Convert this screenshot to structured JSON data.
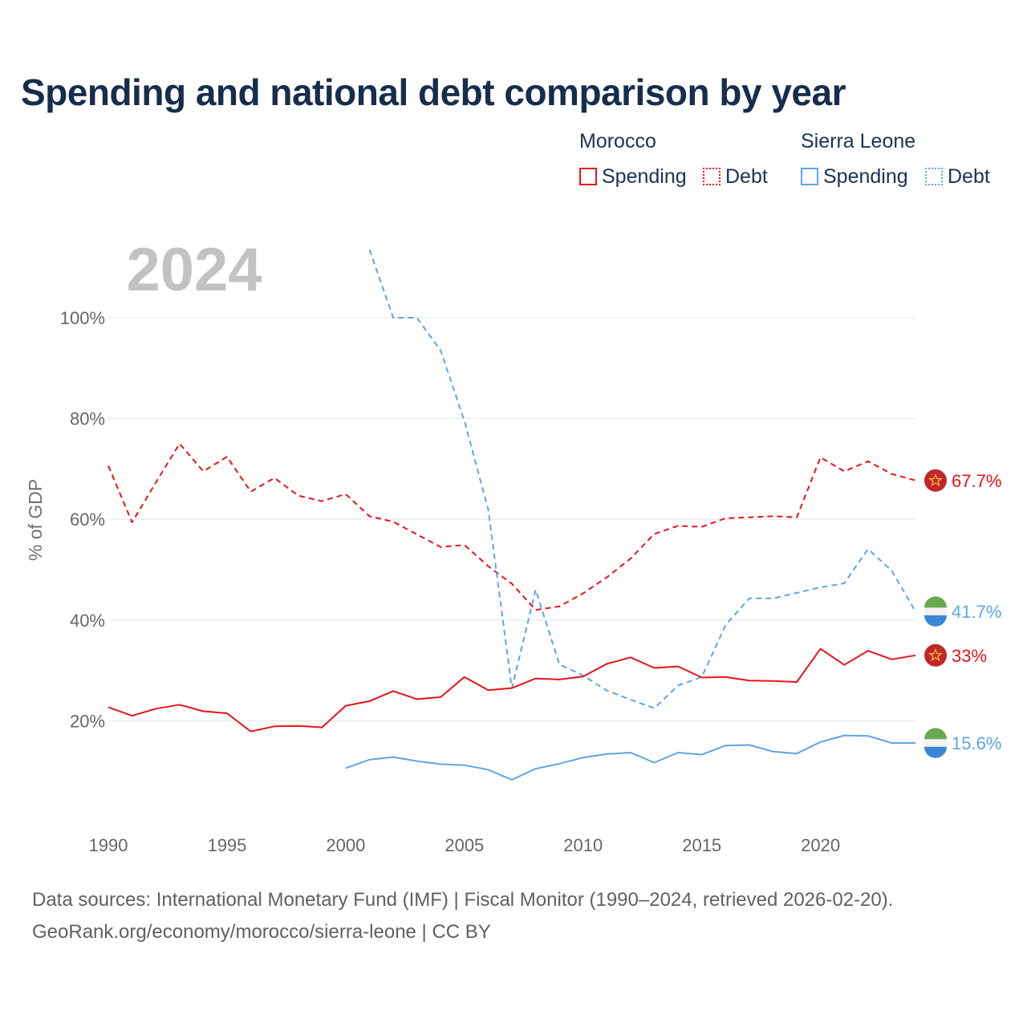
{
  "title": "Spending and national debt comparison by year",
  "legend": {
    "groups": [
      {
        "country": "Morocco",
        "color": "#e8131b",
        "items": [
          "Spending",
          "Debt"
        ]
      },
      {
        "country": "Sierra Leone",
        "color": "#5ea5e3",
        "items": [
          "Spending",
          "Debt"
        ]
      }
    ]
  },
  "chart_data": {
    "type": "line",
    "title": "Spending and national debt comparison by year",
    "year_label": "2024",
    "xlabel": "",
    "ylabel": "% of GDP",
    "xlim": [
      1990,
      2024
    ],
    "ylim": [
      0,
      110
    ],
    "xticks": [
      1990,
      1995,
      2000,
      2005,
      2010,
      2015,
      2020
    ],
    "yticks": [
      20,
      40,
      60,
      80,
      100
    ],
    "ytick_labels": [
      "20%",
      "40%",
      "60%",
      "80%",
      "100%"
    ],
    "grid": true,
    "series": [
      {
        "name": "Morocco Debt",
        "country": "Morocco",
        "style": "dashed",
        "color": "#e8131b",
        "x": [
          1990,
          1991,
          1992,
          1993,
          1994,
          1995,
          1996,
          1997,
          1998,
          1999,
          2000,
          2001,
          2002,
          2003,
          2004,
          2005,
          2006,
          2007,
          2008,
          2009,
          2010,
          2011,
          2012,
          2013,
          2014,
          2015,
          2016,
          2017,
          2018,
          2019,
          2020,
          2021,
          2022,
          2023,
          2024
        ],
        "y": [
          70.6,
          59.4,
          67.3,
          75.0,
          69.5,
          72.4,
          65.5,
          68.2,
          64.7,
          63.6,
          65.0,
          60.6,
          59.5,
          57.0,
          54.5,
          54.9,
          50.7,
          47.2,
          42.0,
          42.7,
          45.3,
          48.5,
          52.2,
          57.1,
          58.7,
          58.5,
          60.2,
          60.4,
          60.6,
          60.4,
          72.3,
          69.5,
          71.5,
          69.0,
          67.7
        ],
        "end_label": "67.7%"
      },
      {
        "name": "Sierra Leone Debt",
        "country": "Sierra Leone",
        "style": "dashed",
        "color": "#5ea5e3",
        "x": [
          2001,
          2002,
          2003,
          2004,
          2005,
          2006,
          2007,
          2008,
          2009,
          2010,
          2011,
          2012,
          2013,
          2014,
          2015,
          2016,
          2017,
          2018,
          2019,
          2020,
          2021,
          2022,
          2023,
          2024
        ],
        "y": [
          113.5,
          100.0,
          100.0,
          93.5,
          79.5,
          62.0,
          26.5,
          46.0,
          31.2,
          29.0,
          26.0,
          24.2,
          22.5,
          27.0,
          28.7,
          39.0,
          44.3,
          44.3,
          45.4,
          46.5,
          47.3,
          54.1,
          49.8,
          41.7
        ],
        "end_label": "41.7%"
      },
      {
        "name": "Morocco Spending",
        "country": "Morocco",
        "style": "solid",
        "color": "#e8131b",
        "x": [
          1990,
          1991,
          1992,
          1993,
          1994,
          1995,
          1996,
          1997,
          1998,
          1999,
          2000,
          2001,
          2002,
          2003,
          2004,
          2005,
          2006,
          2007,
          2008,
          2009,
          2010,
          2011,
          2012,
          2013,
          2014,
          2015,
          2016,
          2017,
          2018,
          2019,
          2020,
          2021,
          2022,
          2023,
          2024
        ],
        "y": [
          22.7,
          21.0,
          22.4,
          23.2,
          21.9,
          21.5,
          17.9,
          18.9,
          19.0,
          18.7,
          23.0,
          23.9,
          25.9,
          24.3,
          24.7,
          28.7,
          26.1,
          26.5,
          28.4,
          28.2,
          28.8,
          31.3,
          32.6,
          30.5,
          30.8,
          28.6,
          28.7,
          28.0,
          27.9,
          27.7,
          34.3,
          31.1,
          33.9,
          32.2,
          33.0
        ],
        "end_label": "33%"
      },
      {
        "name": "Sierra Leone Spending",
        "country": "Sierra Leone",
        "style": "solid",
        "color": "#5ea5e3",
        "x": [
          2000,
          2001,
          2002,
          2003,
          2004,
          2005,
          2006,
          2007,
          2008,
          2009,
          2010,
          2011,
          2012,
          2013,
          2014,
          2015,
          2016,
          2017,
          2018,
          2019,
          2020,
          2021,
          2022,
          2023,
          2024
        ],
        "y": [
          10.6,
          12.3,
          12.8,
          12.0,
          11.4,
          11.2,
          10.3,
          8.3,
          10.5,
          11.5,
          12.7,
          13.4,
          13.7,
          11.7,
          13.7,
          13.3,
          15.1,
          15.2,
          13.9,
          13.5,
          15.8,
          17.1,
          17.0,
          15.6,
          15.6
        ],
        "end_label": "15.6%"
      }
    ]
  },
  "source": {
    "line1": "Data sources: International Monetary Fund (IMF) | Fiscal Monitor (1990–2024, retrieved 2026-02-20).",
    "line2": "GeoRank.org/economy/morocco/sierra-leone | CC BY"
  }
}
